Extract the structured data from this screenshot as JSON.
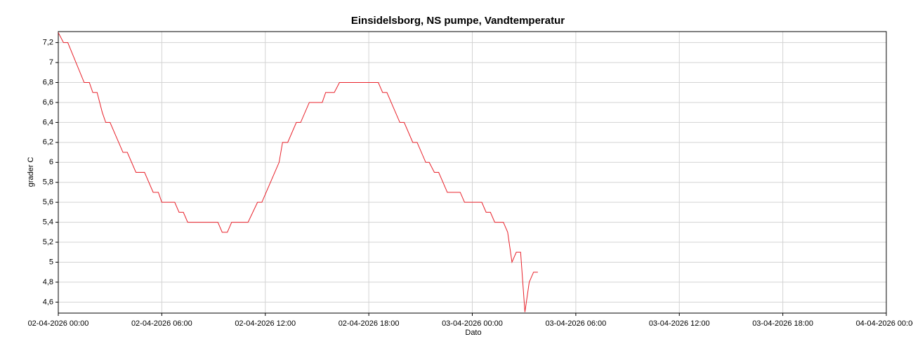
{
  "chart_data": {
    "type": "line",
    "title": "Einsidelsborg, NS pumpe, Vandtemperatur",
    "y_label": "grader C",
    "x_label": "Dato",
    "x": [
      0,
      0.3,
      0.55,
      1.5,
      1.8,
      2.0,
      2.25,
      2.55,
      2.75,
      3.0,
      3.75,
      4.0,
      4.5,
      5.0,
      5.5,
      5.8,
      6.0,
      6.75,
      7.0,
      7.25,
      7.5,
      9.25,
      9.5,
      9.8,
      10.05,
      11.0,
      11.55,
      11.8,
      12.8,
      13.0,
      13.3,
      13.8,
      14.05,
      14.55,
      15.3,
      15.5,
      16.0,
      16.3,
      18.55,
      18.8,
      19.05,
      19.8,
      20.05,
      20.55,
      20.8,
      21.3,
      21.5,
      21.8,
      22.05,
      22.55,
      23.3,
      23.55,
      24.55,
      24.8,
      25.05,
      25.3,
      25.8,
      26.05,
      26.3,
      26.55,
      26.8,
      27.05,
      27.3,
      27.55,
      27.8
    ],
    "series": [
      {
        "name": "Vandtemperatur",
        "color": "#e8212a",
        "values": [
          7.3,
          7.2,
          7.2,
          6.8,
          6.8,
          6.7,
          6.7,
          6.5,
          6.4,
          6.4,
          6.1,
          6.1,
          5.9,
          5.9,
          5.7,
          5.7,
          5.6,
          5.6,
          5.5,
          5.5,
          5.4,
          5.4,
          5.3,
          5.3,
          5.4,
          5.4,
          5.6,
          5.6,
          6.0,
          6.2,
          6.2,
          6.4,
          6.4,
          6.6,
          6.6,
          6.7,
          6.7,
          6.8,
          6.8,
          6.7,
          6.7,
          6.4,
          6.4,
          6.2,
          6.2,
          6.0,
          6.0,
          5.9,
          5.9,
          5.7,
          5.7,
          5.6,
          5.6,
          5.5,
          5.5,
          5.4,
          5.4,
          5.3,
          5.0,
          5.1,
          5.1,
          4.5,
          4.8,
          4.9,
          4.9
        ]
      }
    ],
    "xlim": [
      0,
      48
    ],
    "xticks": [
      {
        "value": 0,
        "label": "02-04-2026 00:00"
      },
      {
        "value": 6,
        "label": "02-04-2026 06:00"
      },
      {
        "value": 12,
        "label": "02-04-2026 12:00"
      },
      {
        "value": 18,
        "label": "02-04-2026 18:00"
      },
      {
        "value": 24,
        "label": "03-04-2026 00:00"
      },
      {
        "value": 30,
        "label": "03-04-2026 06:00"
      },
      {
        "value": 36,
        "label": "03-04-2026 12:00"
      },
      {
        "value": 42,
        "label": "03-04-2026 18:00"
      },
      {
        "value": 48,
        "label": "04-04-2026 00:00"
      }
    ],
    "ylim": [
      4.49,
      7.31
    ],
    "yticks": [
      {
        "value": 4.6,
        "label": "4,6"
      },
      {
        "value": 4.8,
        "label": "4,8"
      },
      {
        "value": 5,
        "label": "5"
      },
      {
        "value": 5.2,
        "label": "5,2"
      },
      {
        "value": 5.4,
        "label": "5,4"
      },
      {
        "value": 5.6,
        "label": "5,6"
      },
      {
        "value": 5.8,
        "label": "5,8"
      },
      {
        "value": 6,
        "label": "6"
      },
      {
        "value": 6.2,
        "label": "6,2"
      },
      {
        "value": 6.4,
        "label": "6,4"
      },
      {
        "value": 6.6,
        "label": "6,6"
      },
      {
        "value": 6.8,
        "label": "6,8"
      },
      {
        "value": 7,
        "label": "7"
      },
      {
        "value": 7.2,
        "label": "7,2"
      }
    ],
    "grid": true
  }
}
